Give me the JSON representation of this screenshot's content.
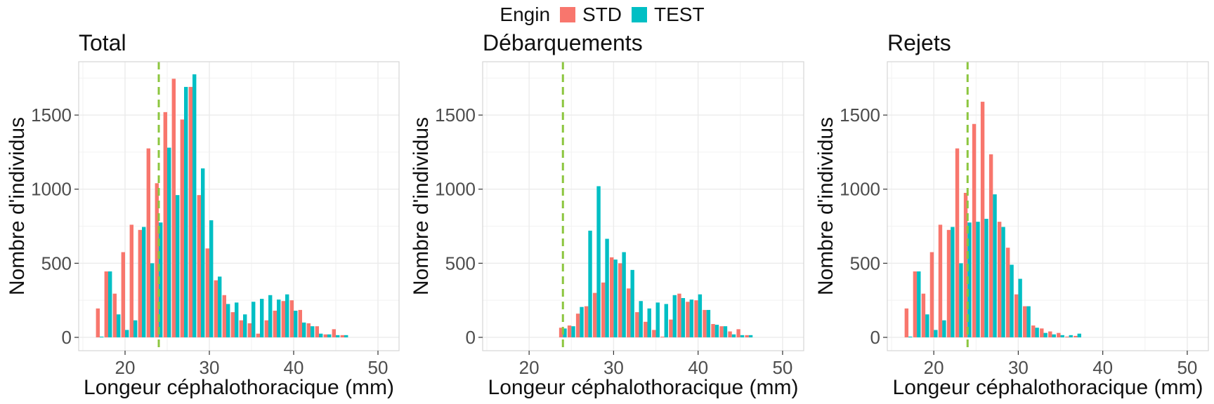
{
  "legend": {
    "title": "Engin",
    "items": [
      {
        "label": "STD",
        "color": "#F8766D"
      },
      {
        "label": "TEST",
        "color": "#00BFC4"
      }
    ]
  },
  "chart_data": [
    {
      "type": "bar",
      "title": "Total",
      "xlabel": "Longeur céphalothoracique (mm)",
      "ylabel": "Nombre d'individus",
      "xlim": [
        14.5,
        52.5
      ],
      "ylim": [
        -90,
        1860
      ],
      "xticks": [
        20,
        30,
        40,
        50
      ],
      "yticks": [
        0,
        500,
        1000,
        1500
      ],
      "vline": {
        "x": 24,
        "color": "#8CC63F"
      },
      "grid": true,
      "legend_position": "top",
      "x": [
        17,
        18,
        19,
        20,
        21,
        22,
        23,
        24,
        25,
        26,
        27,
        28,
        29,
        30,
        31,
        32,
        33,
        34,
        35,
        36,
        37,
        38,
        39,
        40,
        41,
        42,
        43,
        44,
        45,
        46
      ],
      "series": [
        {
          "name": "STD",
          "values": [
            195,
            445,
            295,
            575,
            760,
            725,
            1275,
            1040,
            1520,
            1745,
            1470,
            1690,
            960,
            600,
            385,
            285,
            170,
            115,
            95,
            25,
            115,
            180,
            245,
            250,
            185,
            95,
            75,
            20,
            55,
            15
          ]
        },
        {
          "name": "TEST",
          "values": [
            5,
            445,
            155,
            50,
            115,
            745,
            500,
            775,
            1280,
            960,
            1690,
            1775,
            1140,
            790,
            410,
            225,
            235,
            155,
            240,
            260,
            285,
            255,
            290,
            180,
            100,
            75,
            25,
            20,
            15,
            15
          ]
        }
      ]
    },
    {
      "type": "bar",
      "title": "Débarquements",
      "xlabel": "Longeur céphalothoracique (mm)",
      "ylabel": "Nombre d'individus",
      "xlim": [
        14.5,
        52.5
      ],
      "ylim": [
        -90,
        1860
      ],
      "xticks": [
        20,
        30,
        40,
        50
      ],
      "yticks": [
        0,
        500,
        1000,
        1500
      ],
      "vline": {
        "x": 24,
        "color": "#8CC63F"
      },
      "grid": true,
      "x": [
        24,
        25,
        26,
        27,
        28,
        29,
        30,
        31,
        32,
        33,
        34,
        35,
        36,
        37,
        38,
        39,
        40,
        41,
        42,
        43,
        44,
        45,
        46
      ],
      "series": [
        {
          "name": "STD",
          "values": [
            65,
            80,
            160,
            210,
            300,
            370,
            540,
            500,
            330,
            170,
            105,
            50,
            5,
            120,
            295,
            240,
            250,
            185,
            90,
            75,
            40,
            55,
            15
          ]
        },
        {
          "name": "TEST",
          "values": [
            60,
            75,
            205,
            720,
            1020,
            665,
            525,
            575,
            455,
            245,
            195,
            235,
            225,
            285,
            265,
            255,
            290,
            185,
            85,
            75,
            20,
            15,
            15
          ]
        }
      ]
    },
    {
      "type": "bar",
      "title": "Rejets",
      "xlabel": "Longeur céphalothoracique (mm)",
      "ylabel": "Nombre d'individus",
      "xlim": [
        14.5,
        52.5
      ],
      "ylim": [
        -90,
        1860
      ],
      "xticks": [
        20,
        30,
        40,
        50
      ],
      "yticks": [
        0,
        500,
        1000,
        1500
      ],
      "vline": {
        "x": 24,
        "color": "#8CC63F"
      },
      "grid": true,
      "x": [
        17,
        18,
        19,
        20,
        21,
        22,
        23,
        24,
        25,
        26,
        27,
        28,
        29,
        30,
        31,
        32,
        33,
        34,
        35,
        36,
        37
      ],
      "series": [
        {
          "name": "STD",
          "values": [
            195,
            445,
            295,
            575,
            760,
            725,
            1275,
            975,
            1440,
            1590,
            1235,
            780,
            605,
            290,
            210,
            80,
            60,
            40,
            30,
            5,
            10
          ]
        },
        {
          "name": "TEST",
          "values": [
            5,
            445,
            155,
            50,
            115,
            745,
            500,
            775,
            780,
            800,
            965,
            745,
            490,
            395,
            210,
            65,
            30,
            20,
            15,
            15,
            25
          ]
        }
      ]
    }
  ]
}
